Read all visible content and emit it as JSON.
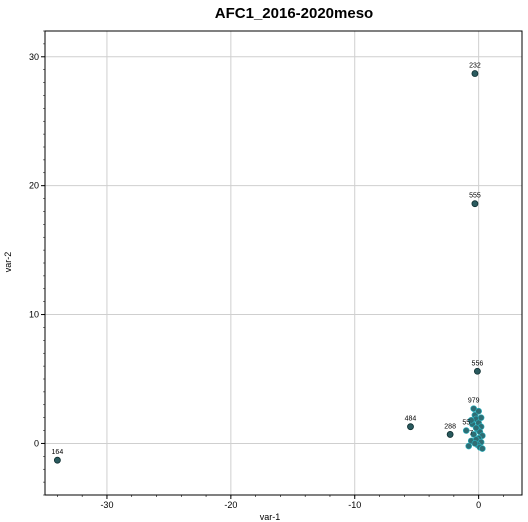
{
  "chart_data": {
    "type": "scatter",
    "title": "AFC1_2016-2020meso",
    "xlabel": "var-1",
    "ylabel": "var-2",
    "xlim": [
      -35,
      3.5
    ],
    "ylim": [
      -4,
      32
    ],
    "xticks": [
      -30,
      -20,
      -10,
      0
    ],
    "yticks": [
      0,
      10,
      20,
      30
    ],
    "grid": true,
    "series": [
      {
        "points": [
          {
            "x": -34.0,
            "y": -1.3,
            "label": "164"
          },
          {
            "x": -5.5,
            "y": 1.3,
            "label": "484"
          },
          {
            "x": -2.3,
            "y": 0.7,
            "label": "288"
          },
          {
            "x": -0.3,
            "y": 28.7,
            "label": "232"
          },
          {
            "x": -0.3,
            "y": 18.6,
            "label": "555"
          },
          {
            "x": -0.1,
            "y": 5.6,
            "label": "556"
          },
          {
            "x": -1.0,
            "y": 1.0,
            "label": "55"
          },
          {
            "x": -0.4,
            "y": 2.7,
            "label": "979"
          },
          {
            "x": -0.6,
            "y": 0.2,
            "label": "7"
          },
          {
            "x": -0.8,
            "y": -0.2,
            "label": ""
          },
          {
            "x": -0.5,
            "y": 1.5,
            "label": ""
          },
          {
            "x": -0.3,
            "y": 2.2,
            "label": ""
          },
          {
            "x": -0.2,
            "y": 1.9,
            "label": ""
          },
          {
            "x": 0.0,
            "y": 1.6,
            "label": ""
          },
          {
            "x": 0.2,
            "y": 1.3,
            "label": ""
          },
          {
            "x": -0.1,
            "y": 1.1,
            "label": ""
          },
          {
            "x": 0.1,
            "y": 0.9,
            "label": ""
          },
          {
            "x": -0.4,
            "y": 0.7,
            "label": ""
          },
          {
            "x": 0.3,
            "y": 0.6,
            "label": ""
          },
          {
            "x": 0.0,
            "y": 0.4,
            "label": ""
          },
          {
            "x": -0.2,
            "y": 0.3,
            "label": ""
          },
          {
            "x": 0.2,
            "y": 0.1,
            "label": ""
          },
          {
            "x": -0.1,
            "y": -0.1,
            "label": ""
          },
          {
            "x": 0.1,
            "y": -0.3,
            "label": ""
          },
          {
            "x": 0.3,
            "y": -0.4,
            "label": ""
          },
          {
            "x": -0.3,
            "y": 0.0,
            "label": ""
          },
          {
            "x": 0.0,
            "y": 2.5,
            "label": ""
          },
          {
            "x": 0.2,
            "y": 2.0,
            "label": ""
          },
          {
            "x": -0.6,
            "y": 1.8,
            "label": ""
          },
          {
            "x": -0.2,
            "y": 1.2,
            "label": ""
          }
        ]
      }
    ]
  }
}
